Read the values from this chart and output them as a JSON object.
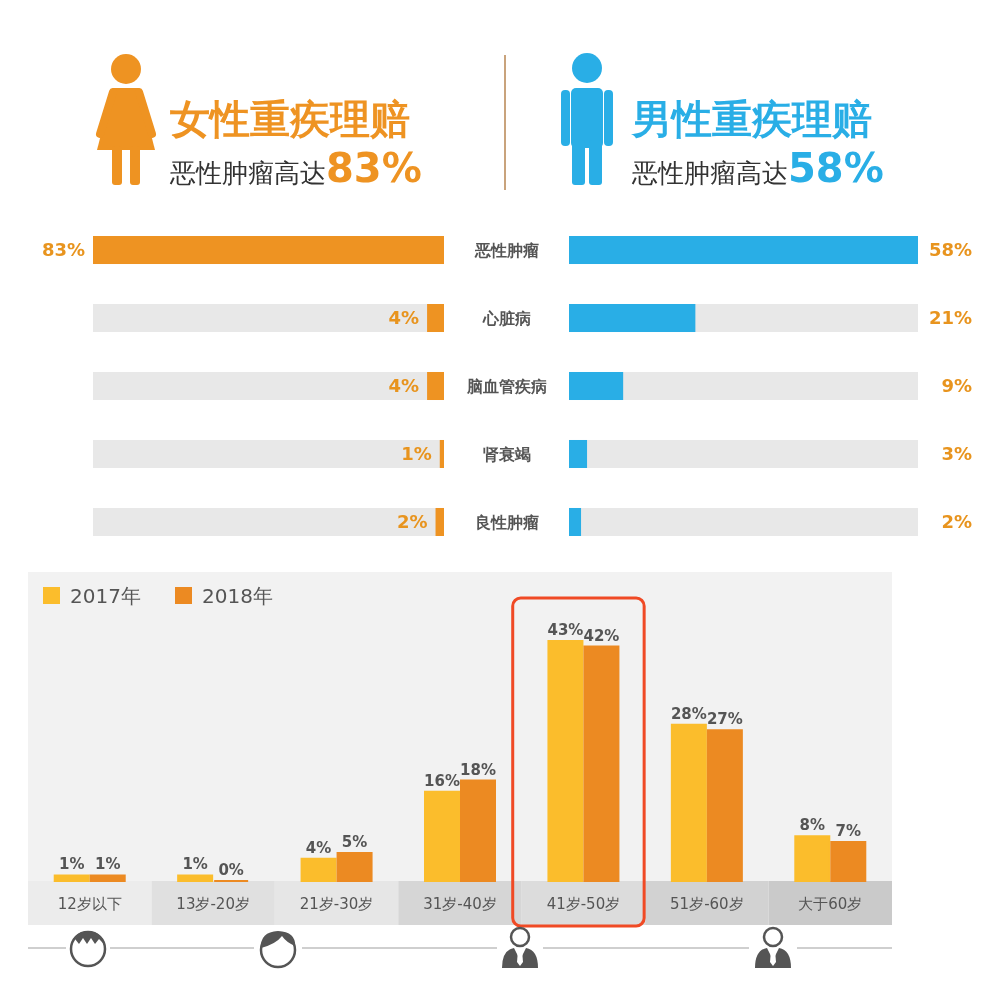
{
  "chart_data": [
    {
      "type": "bar",
      "orientation": "horizontal",
      "title": "女性重疾理赔",
      "subtitle": "恶性肿瘤高达83%",
      "categories": [
        "恶性肿瘤",
        "心脏病",
        "脑血管疾病",
        "肾衰竭",
        "良性肿瘤"
      ],
      "values": [
        83,
        4,
        4,
        1,
        2
      ],
      "value_labels": [
        "83%",
        "4%",
        "4%",
        "1%",
        "2%"
      ],
      "color": "#ee9322",
      "xlim": [
        83,
        0
      ],
      "tick_labels": "y"
    },
    {
      "type": "bar",
      "orientation": "horizontal",
      "title": "男性重疾理赔",
      "subtitle": "恶性肿瘤高达58%",
      "categories": [
        "恶性肿瘤",
        "心脏病",
        "脑血管疾病",
        "肾衰竭",
        "良性肿瘤"
      ],
      "values": [
        58,
        21,
        9,
        3,
        2
      ],
      "value_labels": [
        "58%",
        "21%",
        "9%",
        "3%",
        "2%"
      ],
      "color": "#29aee6",
      "xlim": [
        0,
        58
      ],
      "tick_labels": false
    },
    {
      "type": "bar",
      "categories": [
        "12岁以下",
        "13岁-20岁",
        "21岁-30岁",
        "31岁-40岁",
        "41岁-50岁",
        "51岁-60岁",
        "大于60岁"
      ],
      "series": [
        {
          "name": "2017年",
          "color": "#fbbd2c",
          "values": [
            1,
            1,
            4,
            16,
            43,
            28,
            8
          ],
          "value_labels": [
            "1%",
            "1%",
            "4%",
            "16%",
            "43%",
            "28%",
            "8%"
          ]
        },
        {
          "name": "2018年",
          "color": "#ec8a22",
          "values": [
            1,
            0,
            5,
            18,
            42,
            27,
            7
          ],
          "value_labels": [
            "1%",
            "0%",
            "5%",
            "18%",
            "42%",
            "27%",
            "7%"
          ]
        }
      ],
      "legend": "top left",
      "tick_labels": "x"
    }
  ]
}
